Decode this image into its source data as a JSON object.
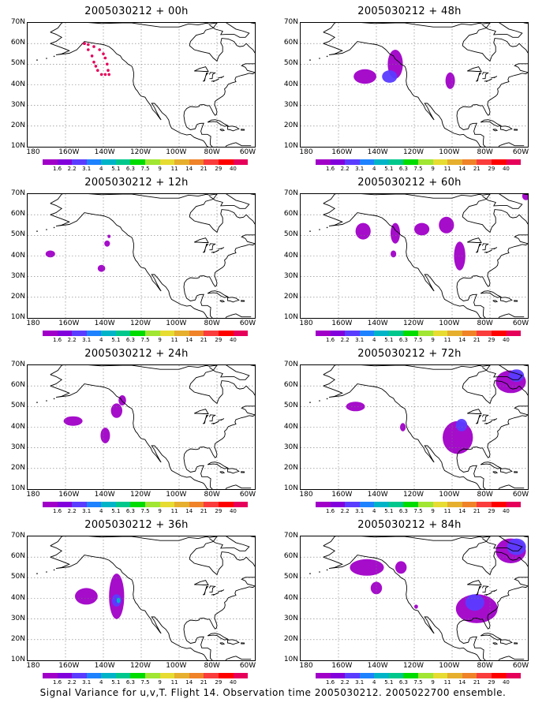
{
  "panels": [
    {
      "title": "2005030212 + 00h"
    },
    {
      "title": "2005030212 + 48h"
    },
    {
      "title": "2005030212 + 12h"
    },
    {
      "title": "2005030212 + 60h"
    },
    {
      "title": "2005030212 + 24h"
    },
    {
      "title": "2005030212 + 72h"
    },
    {
      "title": "2005030212 + 36h"
    },
    {
      "title": "2005030212 + 84h"
    }
  ],
  "lat_labels": [
    "70N",
    "60N",
    "50N",
    "40N",
    "30N",
    "20N",
    "10N"
  ],
  "lon_labels": [
    "180",
    "160W",
    "140W",
    "120W",
    "100W",
    "80W",
    "60W"
  ],
  "colorbar": {
    "colors": [
      "#a000c8",
      "#8200dc",
      "#5a3cff",
      "#1e82ff",
      "#00b4c8",
      "#00c88c",
      "#00dc00",
      "#a0e632",
      "#e6dc32",
      "#e6af2d",
      "#f08228",
      "#fa3c3c",
      "#ff0000",
      "#e6005a"
    ],
    "labels": [
      "1.6",
      "2.2",
      "3.1",
      "4",
      "5.1",
      "6.3",
      "7.5",
      "9",
      "11",
      "14",
      "21",
      "29",
      "40"
    ]
  },
  "caption": "Signal Variance for u,v,T. Flight 14. Observation time 2005030212. 2005022700 ensemble."
}
